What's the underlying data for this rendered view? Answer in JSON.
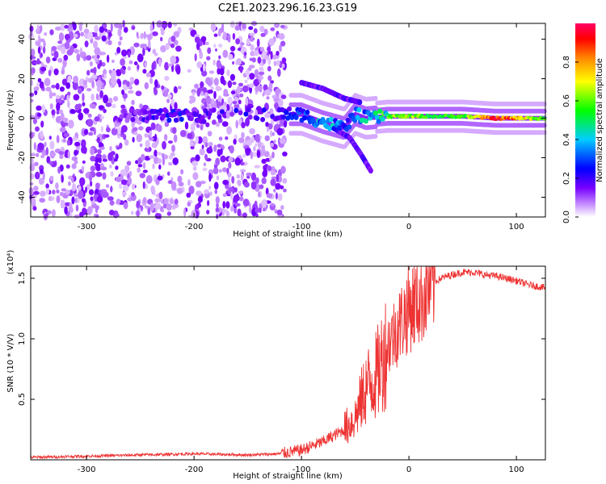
{
  "figure": {
    "title": "C2E1.2023.296.16.23.G19"
  },
  "chart_data": [
    {
      "type": "heatmap",
      "xlabel": "Height of straight line (km)",
      "ylabel": "Frequency (Hz)",
      "xlim": [
        -352,
        127
      ],
      "ylim": [
        -50,
        48
      ],
      "xticks": [
        -300,
        -200,
        -100,
        0,
        100
      ],
      "yticks": [
        -40,
        -20,
        0,
        20,
        40
      ],
      "colorbar": {
        "label": "Normalized spectral amplitude",
        "range": [
          0,
          1
        ],
        "ticks": [
          "0.0",
          "0.2",
          "0.4",
          "0.6",
          "0.8"
        ],
        "tick_values": [
          0,
          0.2,
          0.4,
          0.6,
          0.8
        ],
        "colormap": [
          "#ffffff",
          "#cc99ff",
          "#7700ff",
          "#0000ff",
          "#00ccff",
          "#00ff00",
          "#ffff00",
          "#ff8800",
          "#ff0000",
          "#ff00aa"
        ]
      },
      "trace": [
        {
          "x": -260,
          "y": 1,
          "amp": 0.15
        },
        {
          "x": -220,
          "y": 2,
          "amp": 0.25
        },
        {
          "x": -200,
          "y": 1,
          "amp": 0.2
        },
        {
          "x": -120,
          "y": 2,
          "amp": 0.2
        },
        {
          "x": -100,
          "y": 2,
          "amp": 0.3
        },
        {
          "x": -80,
          "y": -2,
          "amp": 0.4
        },
        {
          "x": -60,
          "y": -5,
          "amp": 0.35
        },
        {
          "x": -50,
          "y": 2,
          "amp": 0.3
        },
        {
          "x": -40,
          "y": 0,
          "amp": 0.45
        },
        {
          "x": -20,
          "y": 1,
          "amp": 0.6
        },
        {
          "x": 0,
          "y": 1,
          "amp": 0.65
        },
        {
          "x": 20,
          "y": 1,
          "amp": 0.55
        },
        {
          "x": 50,
          "y": 1,
          "amp": 0.55
        },
        {
          "x": 80,
          "y": 0,
          "amp": 0.95
        },
        {
          "x": 100,
          "y": 0,
          "amp": 0.8
        },
        {
          "x": 127,
          "y": 0,
          "amp": 0.55
        }
      ],
      "branches": [
        {
          "x": [
            -100,
            -80,
            -60,
            -45
          ],
          "y": [
            18,
            15,
            10,
            8
          ]
        },
        {
          "x": [
            -70,
            -55,
            -45,
            -35
          ],
          "y": [
            -5,
            -10,
            -18,
            -27
          ]
        }
      ]
    },
    {
      "type": "line",
      "xlabel": "Height of straight line (km)",
      "ylabel": "SNR (10 * V/V)",
      "y_multiplier": "(x10⁴)",
      "xlim": [
        -352,
        127
      ],
      "ylim": [
        0,
        1.6
      ],
      "xticks": [
        -300,
        -200,
        -100,
        0,
        100
      ],
      "yticks": [
        0.5,
        1.0,
        1.5
      ],
      "ytick_labels": [
        "0.5",
        "1.0",
        "1.5"
      ],
      "series": [
        {
          "color": "#ee3333",
          "x": [
            -352,
            -300,
            -250,
            -200,
            -150,
            -120,
            -100,
            -80,
            -60,
            -50,
            -40,
            -30,
            -20,
            -10,
            0,
            10,
            20,
            30,
            40,
            50,
            60,
            70,
            80,
            90,
            100,
            110,
            127
          ],
          "y": [
            0.02,
            0.03,
            0.04,
            0.05,
            0.04,
            0.05,
            0.08,
            0.15,
            0.25,
            0.35,
            0.6,
            0.7,
            0.95,
            1.1,
            1.25,
            1.33,
            1.45,
            1.5,
            1.53,
            1.55,
            1.55,
            1.53,
            1.52,
            1.5,
            1.48,
            1.45,
            1.42
          ]
        }
      ]
    }
  ]
}
